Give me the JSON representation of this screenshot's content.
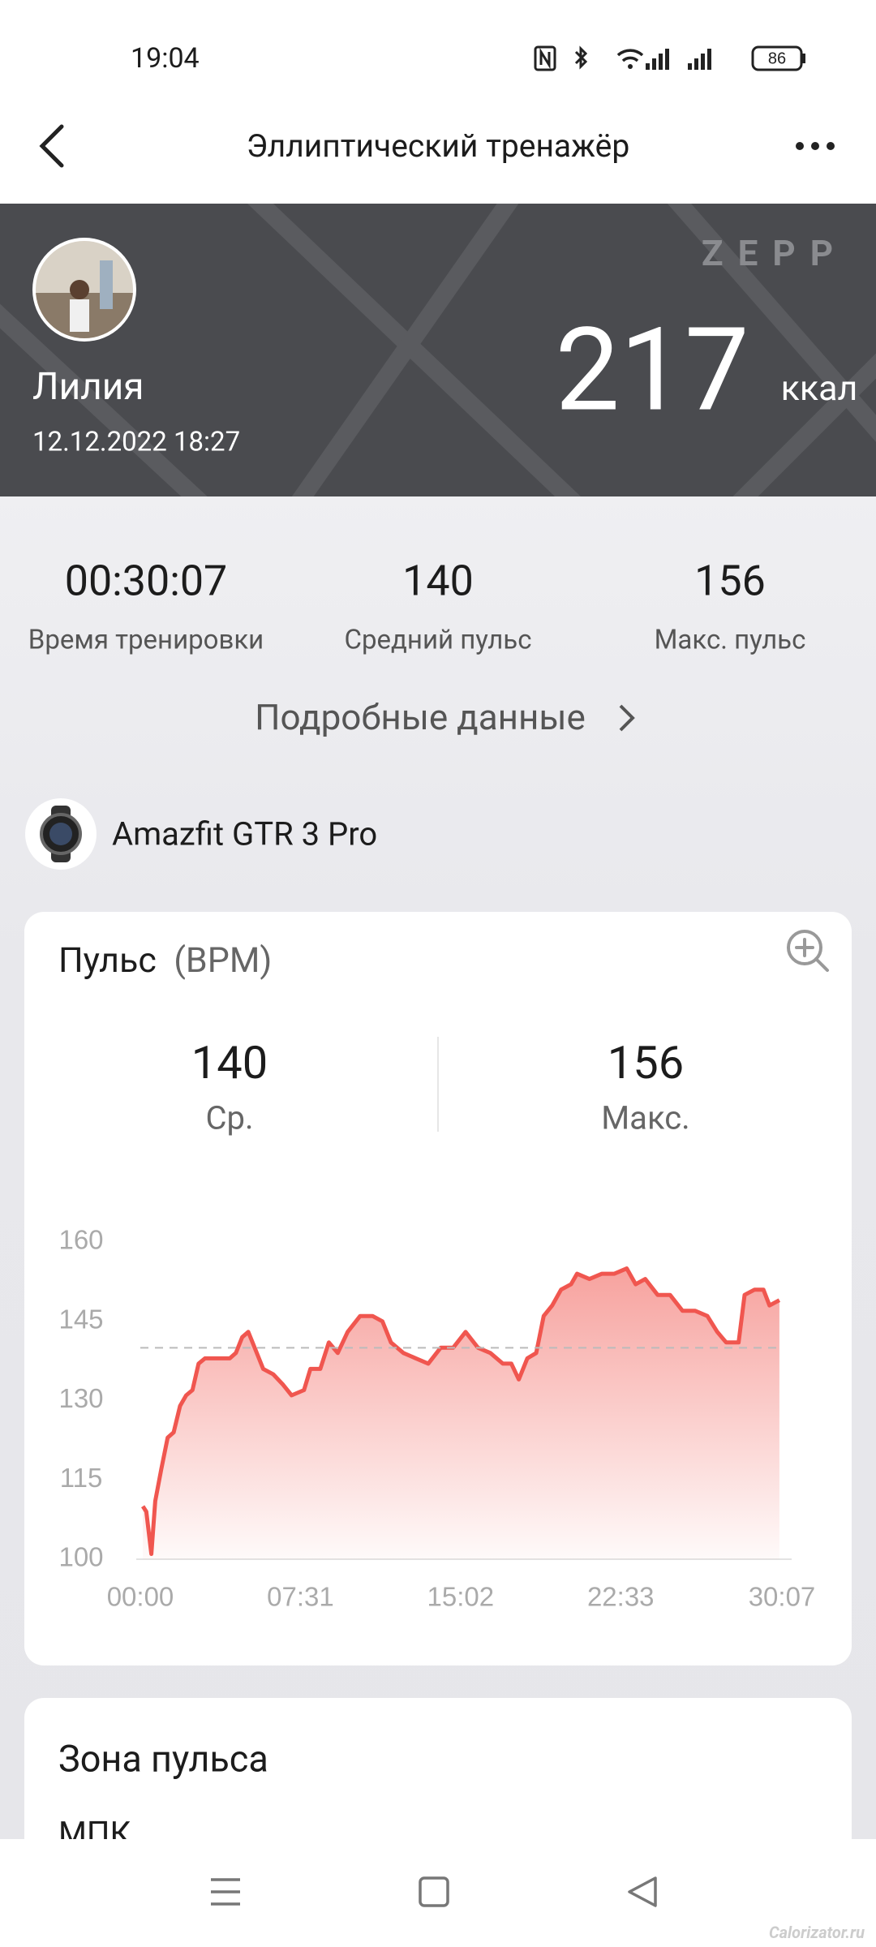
{
  "status_bar": {
    "time": "19:04",
    "battery": "86"
  },
  "header": {
    "title": "Эллиптический тренажёр"
  },
  "banner": {
    "brand": "ZEPP",
    "user_name": "Лилия",
    "datetime": "12.12.2022 18:27",
    "calories": 217,
    "calories_unit": "ккал"
  },
  "stats": [
    {
      "value": "00:30:07",
      "label": "Время тренировки"
    },
    {
      "value": 140,
      "label": "Средний пульс"
    },
    {
      "value": 156,
      "label": "Макс. пульс"
    }
  ],
  "details_link": "Подробные данные",
  "device": "Amazfit GTR 3 Pro",
  "heart_rate_card": {
    "title": "Пульс",
    "unit": "(BPM)",
    "avg_value": 140,
    "avg_label": "Ср.",
    "max_value": 156,
    "max_label": "Макс.",
    "chart": {
      "type": "line",
      "color": "#f0564f",
      "xlim": [
        0,
        1807
      ],
      "ylim": [
        100,
        160
      ],
      "yticks": [
        100,
        115,
        130,
        145,
        160
      ],
      "xticks": [
        {
          "value": 0,
          "label": "00:00"
        },
        {
          "value": 451,
          "label": "07:31"
        },
        {
          "value": 902,
          "label": "15:02"
        },
        {
          "value": 1353,
          "label": "22:33"
        },
        {
          "value": 1807,
          "label": "30:07"
        }
      ],
      "x": [
        7,
        17,
        31,
        42,
        59,
        77,
        94,
        112,
        129,
        147,
        164,
        182,
        217,
        252,
        269,
        287,
        304,
        322,
        346,
        374,
        402,
        426,
        461,
        479,
        507,
        531,
        556,
        584,
        619,
        654,
        682,
        706,
        741,
        776,
        811,
        846,
        881,
        916,
        951,
        986,
        1021,
        1045,
        1066,
        1090,
        1115,
        1136,
        1160,
        1185,
        1213,
        1230,
        1265,
        1300,
        1335,
        1370,
        1395,
        1422,
        1457,
        1492,
        1527,
        1562,
        1597,
        1625,
        1650,
        1685,
        1702,
        1730,
        1755,
        1772,
        1800
      ],
      "values": [
        110,
        109,
        101,
        111,
        117,
        123,
        124,
        129,
        131,
        132,
        137,
        138,
        138,
        138,
        139,
        142,
        143,
        140,
        136,
        135,
        133,
        131,
        132,
        136,
        136,
        141,
        139,
        143,
        146,
        146,
        145,
        141,
        139,
        138,
        137,
        140,
        140,
        143,
        140,
        139,
        137,
        137,
        134,
        138,
        139,
        146,
        148,
        151,
        152,
        154,
        153,
        154,
        154,
        155,
        152,
        153,
        150,
        150,
        147,
        147,
        146,
        143,
        141,
        141,
        150,
        151,
        151,
        148,
        149
      ]
    }
  },
  "zone_card": {
    "title": "Зона пульса",
    "subtitle": "МПК"
  },
  "watermark": "Calorizator.ru"
}
